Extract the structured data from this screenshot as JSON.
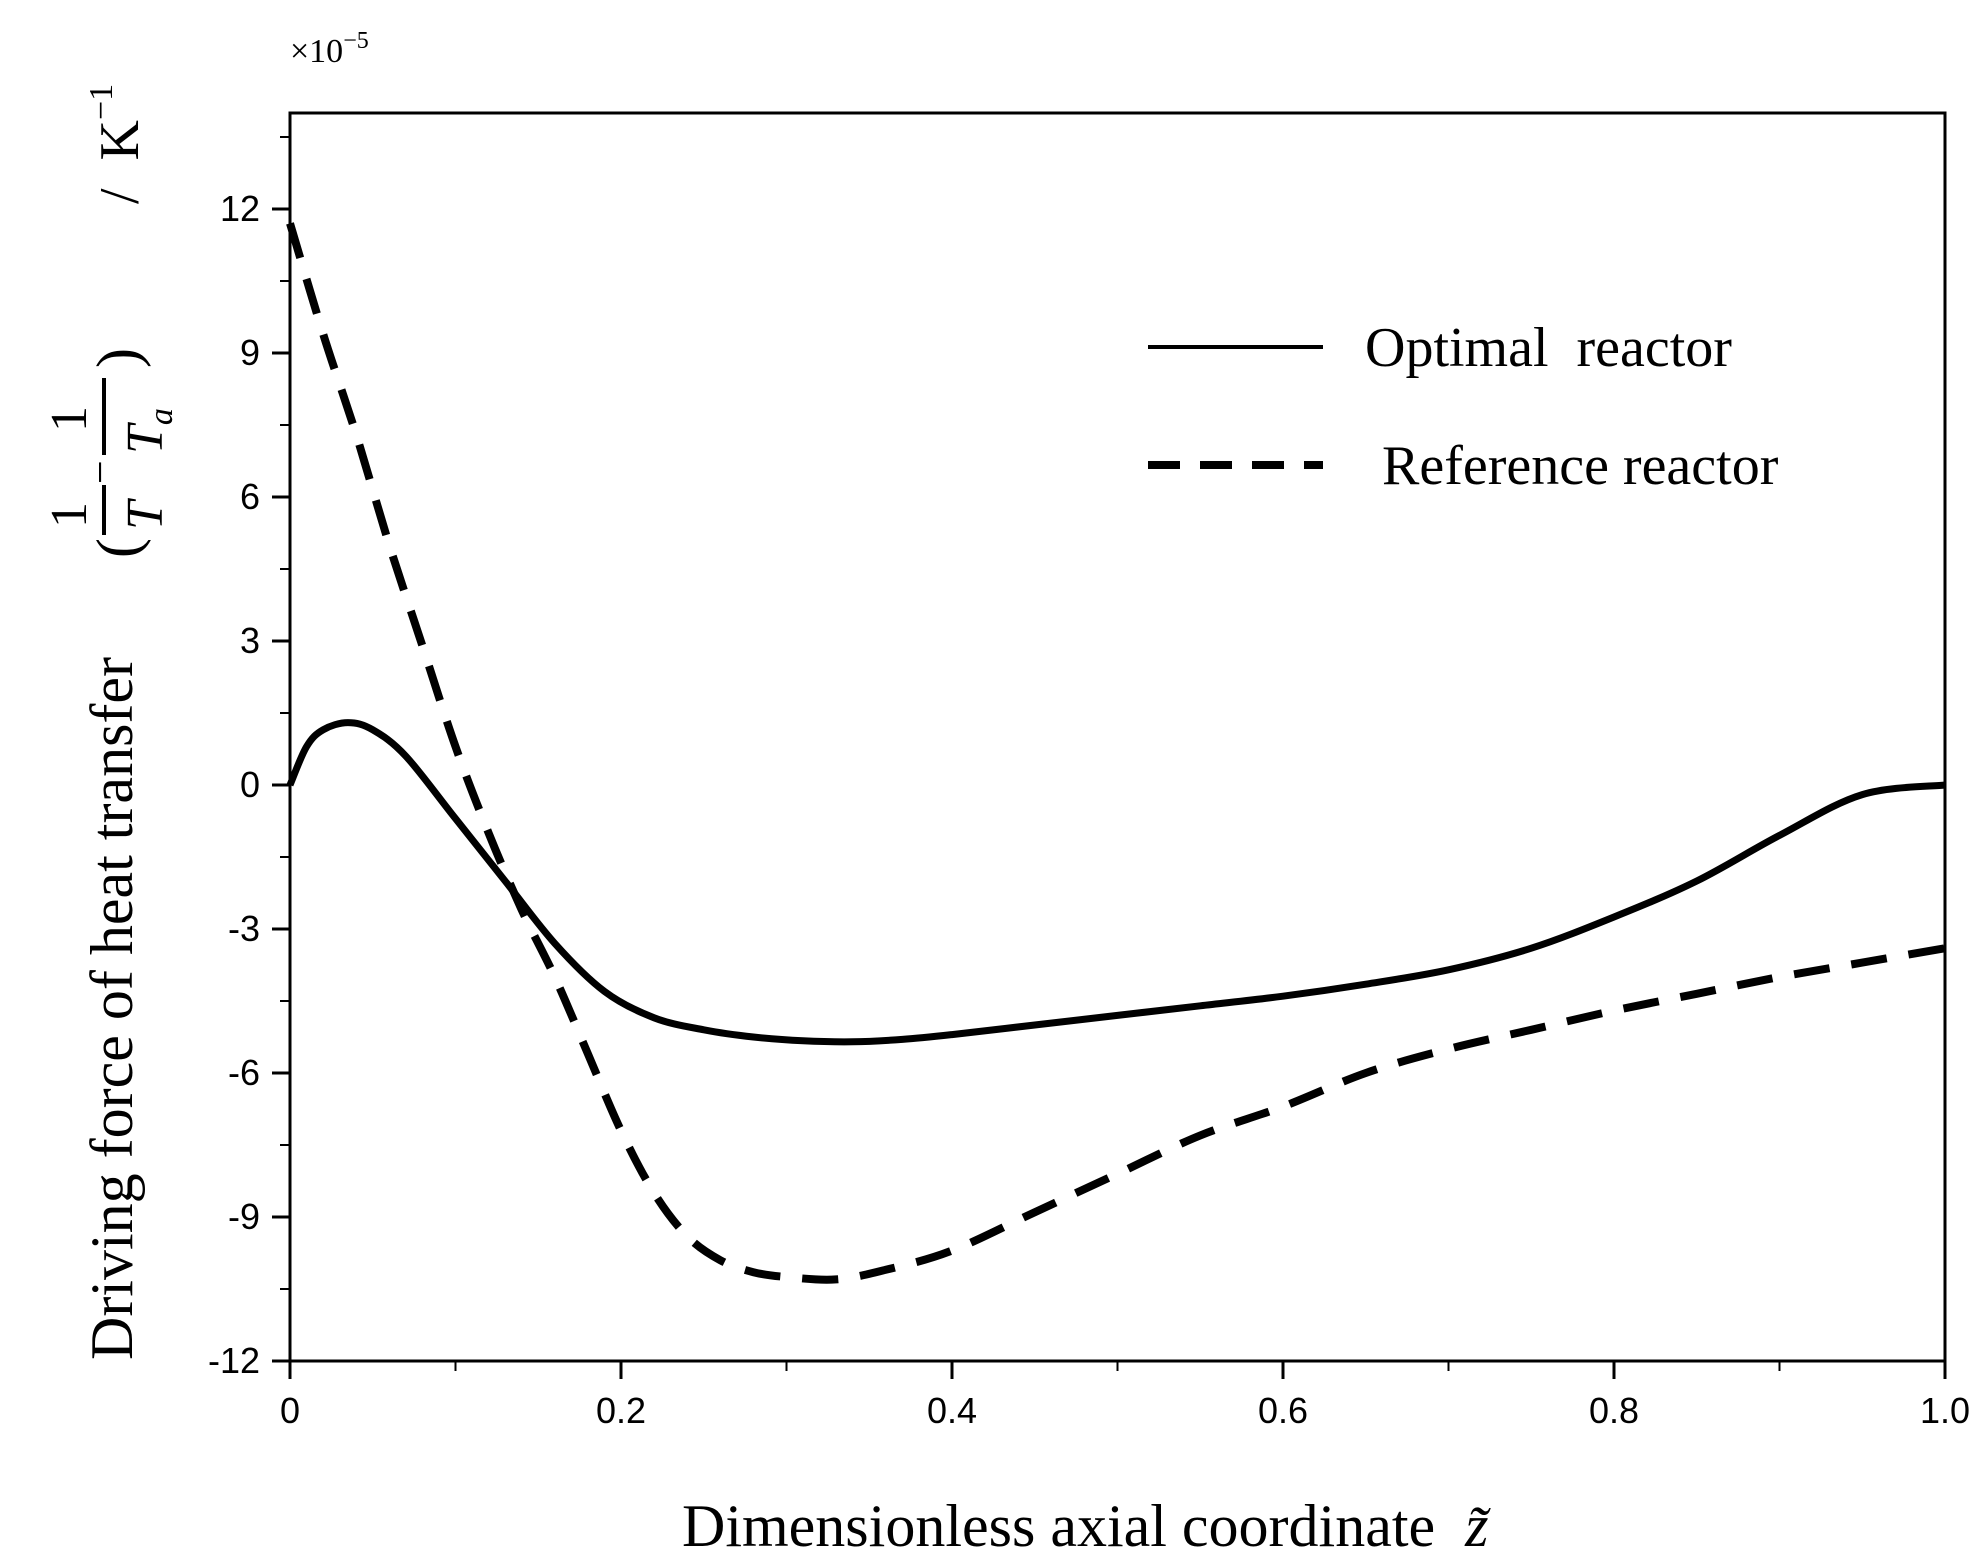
{
  "chart_data": {
    "type": "line",
    "x_multiplier_label": "×10",
    "x_multiplier_exp": "−5",
    "xlabel": "Dimensionless axial coordinate",
    "xlabel_symbol": "z̃",
    "ylabel_prefix": "Driving force of heat transfer",
    "ylabel_frac1_num": "1",
    "ylabel_frac1_den": "T",
    "ylabel_minus": "−",
    "ylabel_frac2_num": "1",
    "ylabel_frac2_den": "T",
    "ylabel_frac2_sub": "a",
    "ylabel_unit": "/  K",
    "ylabel_unit_exp": "−1",
    "xlim": [
      0,
      1.0
    ],
    "ylim": [
      -12,
      14
    ],
    "x_ticks": [
      0,
      0.2,
      0.4,
      0.6,
      0.8,
      1.0
    ],
    "x_tick_labels": [
      "0",
      "0.2",
      "0.4",
      "0.6",
      "0.8",
      "1.0"
    ],
    "y_ticks": [
      -12,
      -9,
      -6,
      -3,
      0,
      3,
      6,
      9,
      12
    ],
    "y_tick_labels": [
      "-12",
      "-9",
      "-6",
      "-3",
      "0",
      "3",
      "6",
      "9",
      "12"
    ],
    "legend": {
      "position": "top-right"
    },
    "series": [
      {
        "name": "Optimal  reactor",
        "style": "solid",
        "color": "#000000",
        "x": [
          0,
          0.01,
          0.02,
          0.035,
          0.05,
          0.07,
          0.1,
          0.13,
          0.16,
          0.19,
          0.22,
          0.25,
          0.28,
          0.31,
          0.34,
          0.37,
          0.4,
          0.45,
          0.5,
          0.55,
          0.6,
          0.65,
          0.7,
          0.75,
          0.8,
          0.85,
          0.9,
          0.95,
          1.0
        ],
        "y": [
          0,
          0.8,
          1.15,
          1.3,
          1.15,
          0.6,
          -0.7,
          -2.0,
          -3.3,
          -4.3,
          -4.85,
          -5.1,
          -5.25,
          -5.33,
          -5.35,
          -5.3,
          -5.2,
          -5.0,
          -4.8,
          -4.6,
          -4.4,
          -4.15,
          -3.85,
          -3.4,
          -2.75,
          -2.0,
          -1.05,
          -0.2,
          0
        ]
      },
      {
        "name": "Reference reactor",
        "style": "dashed",
        "color": "#000000",
        "x": [
          0,
          0.02,
          0.04,
          0.06,
          0.08,
          0.1,
          0.12,
          0.14,
          0.16,
          0.18,
          0.2,
          0.22,
          0.24,
          0.26,
          0.28,
          0.3,
          0.33,
          0.36,
          0.4,
          0.45,
          0.5,
          0.55,
          0.6,
          0.65,
          0.7,
          0.75,
          0.8,
          0.85,
          0.9,
          0.95,
          1.0
        ],
        "y": [
          11.7,
          9.4,
          7.3,
          5.0,
          2.9,
          0.8,
          -1.0,
          -2.6,
          -4.0,
          -5.6,
          -7.2,
          -8.5,
          -9.4,
          -9.9,
          -10.15,
          -10.25,
          -10.3,
          -10.1,
          -9.7,
          -8.9,
          -8.1,
          -7.3,
          -6.7,
          -6.0,
          -5.5,
          -5.1,
          -4.7,
          -4.35,
          -4.0,
          -3.7,
          -3.4
        ]
      }
    ]
  }
}
